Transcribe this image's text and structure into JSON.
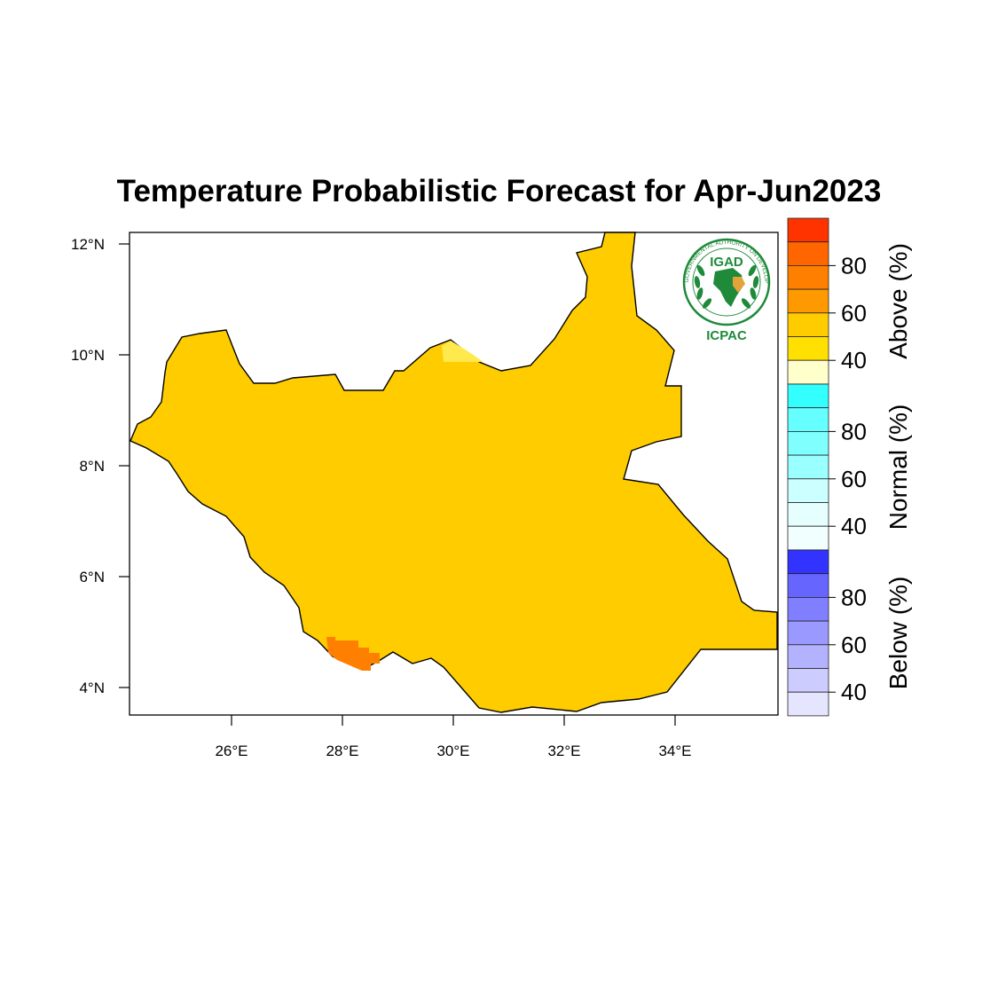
{
  "title": "Temperature Probabilistic Forecast for Apr-Jun2023",
  "map": {
    "region": "South Sudan",
    "lon_range": [
      24.2,
      35.9
    ],
    "lat_range": [
      3.5,
      12.2
    ],
    "lon_ticks": [
      "26°E",
      "28°E",
      "30°E",
      "32°E",
      "34°E"
    ],
    "lat_ticks": [
      "12°N",
      "10°N",
      "8°N",
      "6°N",
      "4°N"
    ],
    "dominant_category": "Above",
    "dominant_probability": "50-60",
    "fill_color": "#FFCC00",
    "highlight_color": "#FF7F00",
    "light_patch_color": "#FFE94D"
  },
  "logo": {
    "acronym": "IGAD",
    "name": "ICPAC",
    "ring_text": "INTERGOVERNMENTAL AUTHORITY ON DEVELOPMENT",
    "color": "#1E8A3A"
  },
  "colorbar": {
    "groups": [
      {
        "title": "Above (%)",
        "labels": [
          "80",
          "60",
          "40"
        ],
        "colors": [
          "#FF3300",
          "#FF6600",
          "#FF7F00",
          "#FF9900",
          "#FFCC00",
          "#FFE000",
          "#FFFFCC"
        ]
      },
      {
        "title": "Normal (%)",
        "labels": [
          "80",
          "60",
          "40"
        ],
        "colors": [
          "#33FFFF",
          "#66FFFF",
          "#80FFFF",
          "#99FFFF",
          "#CCFFFF",
          "#E5FFFF",
          "#F2FFFF"
        ]
      },
      {
        "title": "Below (%)",
        "labels": [
          "80",
          "60",
          "40"
        ],
        "colors": [
          "#3333FF",
          "#6666FF",
          "#7F7FFF",
          "#9999FF",
          "#B2B2FF",
          "#CCCCFF",
          "#E5E5FF"
        ]
      }
    ]
  }
}
